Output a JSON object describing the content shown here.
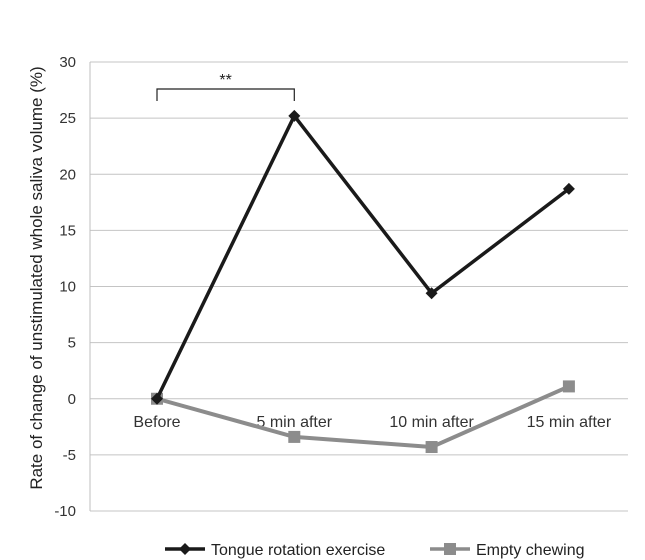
{
  "chart_data": {
    "type": "line",
    "categories": [
      "Before",
      "5 min after",
      "10 min after",
      "15 min after"
    ],
    "ylabel": "Rate of change of unstimulated whole saliva volume (%)",
    "ylim": [
      -10,
      30
    ],
    "yticks": [
      "30",
      "25",
      "20",
      "15",
      "10",
      "5",
      "0",
      "-5",
      "-10"
    ],
    "grid": true,
    "legend_position": "bottom",
    "series": [
      {
        "name": "Tongue rotation exercise",
        "values": [
          0,
          25.2,
          9.4,
          18.7
        ],
        "color": "#1a1a1a",
        "marker": "diamond"
      },
      {
        "name": "Empty chewing",
        "values": [
          0,
          -3.4,
          -4.3,
          1.1
        ],
        "color": "#8c8c8c",
        "marker": "square"
      }
    ],
    "annotation": {
      "text": "**",
      "from_category": "Before",
      "to_category": "5 min after"
    }
  }
}
